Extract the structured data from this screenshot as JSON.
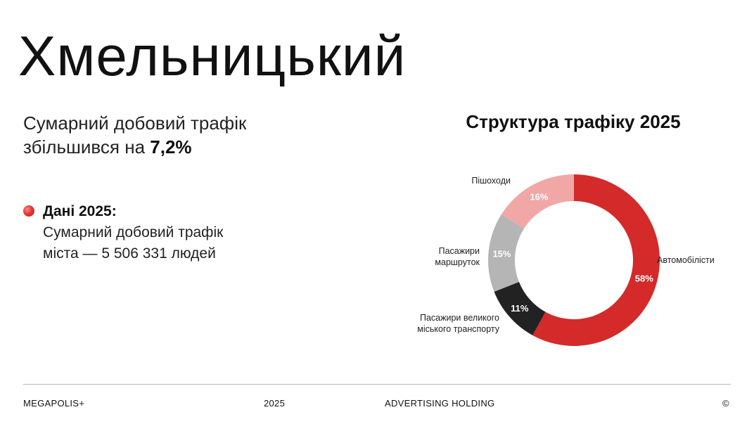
{
  "header": {
    "city": "Хмельницький"
  },
  "summary": {
    "line1": "Сумарний добовий трафік",
    "line2_prefix": "збільшився на",
    "growth": "7,2%"
  },
  "data2025": {
    "heading": "Дані 2025:",
    "line1": "Сумарний добовий трафік",
    "line2": "міста — 5 506 331 людей"
  },
  "chart_data": {
    "type": "pie",
    "title": "Структура трафіку 2025",
    "series": [
      {
        "name": "Автомобілісти",
        "value": 58,
        "label": "58%",
        "color": "#d42a2a"
      },
      {
        "name": "Пасажири великого міського транспорту",
        "value": 11,
        "label": "11%",
        "color": "#222222"
      },
      {
        "name": "Пасажири маршруток",
        "value": 15,
        "label": "15%",
        "color": "#b5b5b5"
      },
      {
        "name": "Пішоходи",
        "value": 16,
        "label": "16%",
        "color": "#f2a7a7"
      }
    ]
  },
  "footer": {
    "brand": "MEGAPOLIS+",
    "year": "2025",
    "holding": "ADVERTISING HOLDING",
    "copyright": "©"
  }
}
